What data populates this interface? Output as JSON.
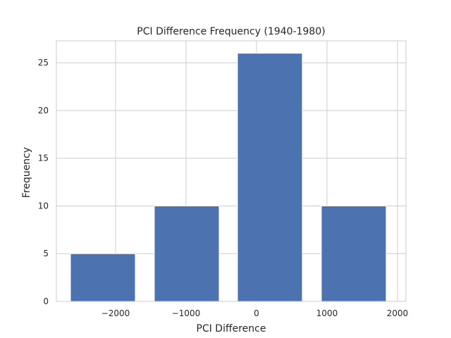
{
  "chart_data": {
    "type": "bar",
    "title": "PCI Difference Frequency (1940-1980)",
    "xlabel": "PCI Difference",
    "ylabel": "Frequency",
    "bars": [
      {
        "left": -2640,
        "right": -1720,
        "value": 5
      },
      {
        "left": -1450,
        "right": -530,
        "value": 10
      },
      {
        "left": -270,
        "right": 650,
        "value": 26
      },
      {
        "left": 920,
        "right": 1840,
        "value": 10
      }
    ],
    "xlim": [
      -2840,
      2120
    ],
    "ylim": [
      0,
      27.3
    ],
    "xticks": [
      {
        "value": -2000,
        "label": "−2000"
      },
      {
        "value": -1000,
        "label": "−1000"
      },
      {
        "value": 0,
        "label": "0"
      },
      {
        "value": 1000,
        "label": "1000"
      },
      {
        "value": 2000,
        "label": "2000"
      }
    ],
    "yticks": [
      0,
      5,
      10,
      15,
      20,
      25
    ],
    "bar_color": "#4c72b0",
    "grid": true
  }
}
